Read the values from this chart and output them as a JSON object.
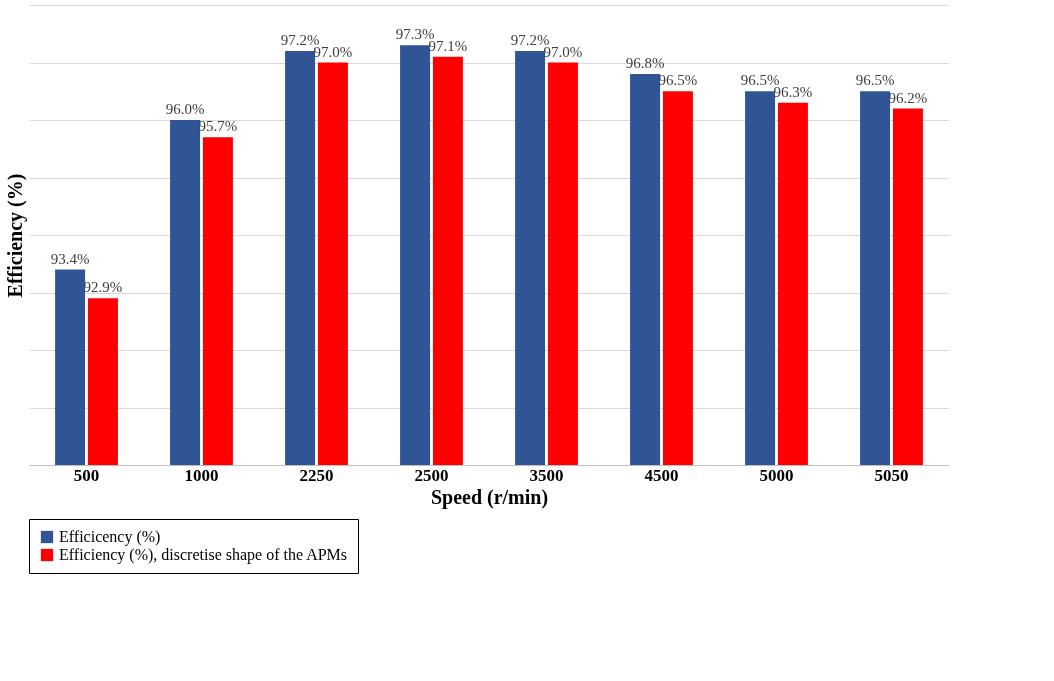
{
  "chart_data": {
    "type": "bar",
    "xlabel": "Speed (r/min)",
    "ylabel": "Efficiency (%)",
    "categories": [
      "500",
      "1000",
      "2250",
      "2500",
      "3500",
      "4500",
      "5000",
      "5050"
    ],
    "series": [
      {
        "name": "Efficicency (%)",
        "color": "#2f5597",
        "values": [
          93.4,
          96.0,
          97.2,
          97.3,
          97.2,
          96.8,
          96.5,
          96.5
        ],
        "value_labels": [
          "93.4%",
          "96.0%",
          "97.2%",
          "97.3%",
          "97.2%",
          "96.8%",
          "96.5%",
          "96.5%"
        ]
      },
      {
        "name": "Efficiency (%), discretise shape of the APMs",
        "color": "#ff0000",
        "values": [
          92.9,
          95.7,
          97.0,
          97.1,
          97.0,
          96.5,
          96.3,
          96.2
        ],
        "value_labels": [
          "92.9%",
          "95.7%",
          "97.0%",
          "97.1%",
          "97.0%",
          "96.5%",
          "96.3%",
          "96.2%"
        ]
      }
    ],
    "ylim": [
      90,
      98
    ],
    "yticks": [
      {
        "value": 90,
        "label": null
      },
      {
        "value": 91,
        "label": null
      },
      {
        "value": 92,
        "label": null
      },
      {
        "value": 93,
        "label": null
      },
      {
        "value": 94,
        "label": null
      },
      {
        "value": 95,
        "label": null
      },
      {
        "value": 96,
        "label": null
      },
      {
        "value": 97,
        "label": null
      },
      {
        "value": 98,
        "label": null
      }
    ],
    "tick_labels": "x",
    "grid": "y",
    "legend": "bottom"
  }
}
